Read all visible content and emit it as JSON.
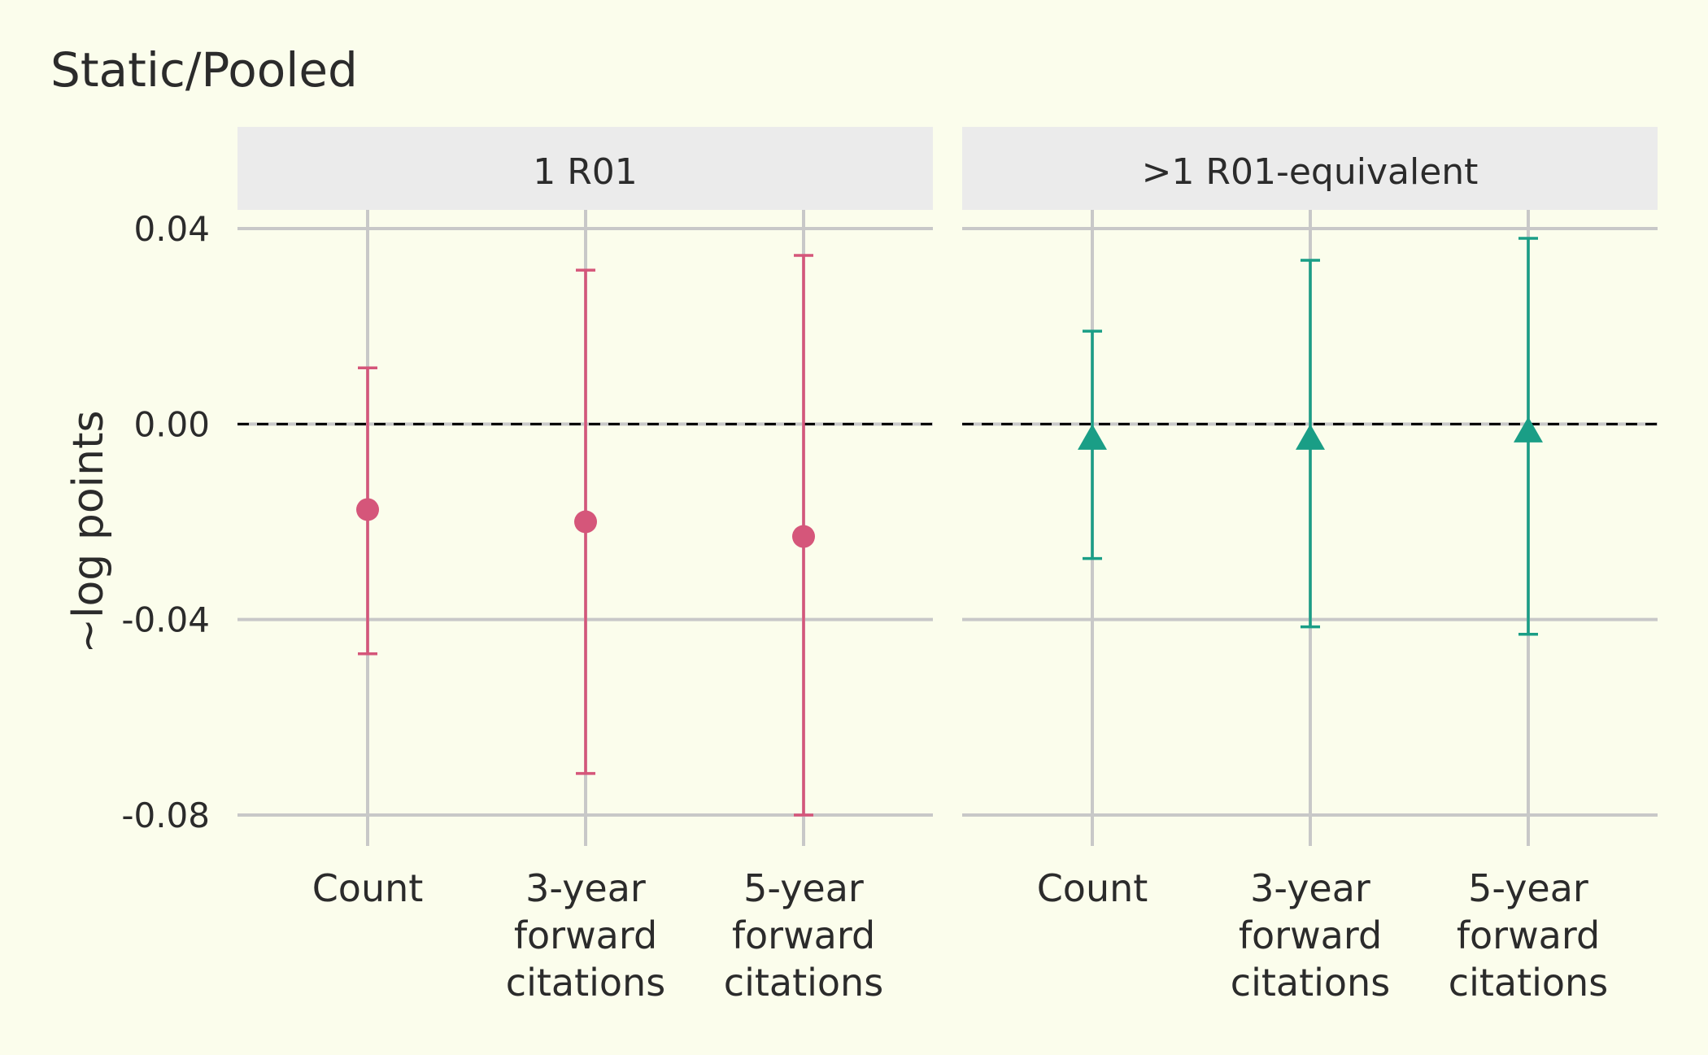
{
  "chart_data": {
    "type": "scatter",
    "title": "Static/Pooled",
    "ylabel": "~log points",
    "xlabel": "",
    "ylim": [
      -0.08,
      0.04
    ],
    "yticks": [
      0.04,
      0.0,
      -0.04,
      -0.08
    ],
    "ytick_labels": [
      "0.04",
      "0.00",
      "-0.04",
      "-0.08"
    ],
    "reference_line": 0.0,
    "grid": true,
    "legend": "none",
    "categories": [
      "Count",
      "3-year forward citations",
      "5-year forward citations"
    ],
    "category_label_lines": [
      [
        "Count"
      ],
      [
        "3-year",
        "forward",
        "citations"
      ],
      [
        "5-year",
        "forward",
        "citations"
      ]
    ],
    "panels": [
      {
        "title": "1 R01",
        "color": "#D5567A",
        "marker": "circle",
        "estimates": [
          -0.0175,
          -0.02,
          -0.023
        ],
        "ci_low": [
          -0.047,
          -0.0715,
          -0.08
        ],
        "ci_high": [
          0.0115,
          0.0315,
          0.0345
        ]
      },
      {
        "title": ">1 R01-equivalent",
        "color": "#1A9E86",
        "marker": "triangle",
        "estimates": [
          -0.003,
          -0.003,
          -0.0015
        ],
        "ci_low": [
          -0.0275,
          -0.0415,
          -0.043
        ],
        "ci_high": [
          0.019,
          0.0335,
          0.038
        ]
      }
    ],
    "colors": {
      "background": "#FBFDEC",
      "strip": "#EBEBEB",
      "grid": "#C8C8C8",
      "text": "#2B2B2B"
    }
  }
}
